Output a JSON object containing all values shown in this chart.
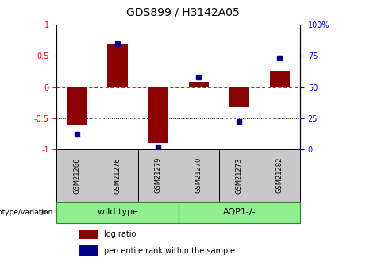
{
  "title": "GDS899 / H3142A05",
  "samples": [
    "GSM21266",
    "GSM21276",
    "GSM21279",
    "GSM21270",
    "GSM21273",
    "GSM21282"
  ],
  "log_ratio": [
    -0.62,
    0.7,
    -0.9,
    0.08,
    -0.32,
    0.25
  ],
  "percentile_rank": [
    12,
    85,
    2,
    58,
    22,
    73
  ],
  "bar_color_red": "#8B0000",
  "dot_color_blue": "#00008B",
  "ylim_left": [
    -1.0,
    1.0
  ],
  "ylim_right": [
    0,
    100
  ],
  "yticks_left": [
    -1.0,
    -0.5,
    0.0,
    0.5,
    1.0
  ],
  "ytick_labels_left": [
    "-1",
    "-0.5",
    "0",
    "0.5",
    "1"
  ],
  "yticks_right": [
    0,
    25,
    50,
    75,
    100
  ],
  "ytick_labels_right": [
    "0",
    "25",
    "50",
    "75",
    "100%"
  ],
  "group1_label": "wild type",
  "group2_label": "AQP1-/-",
  "group_border_color": "#228B22",
  "group_fill_color": "#90EE90",
  "sample_box_color": "#C8C8C8",
  "legend_red_label": "log ratio",
  "legend_blue_label": "percentile rank within the sample",
  "bar_width": 0.5
}
